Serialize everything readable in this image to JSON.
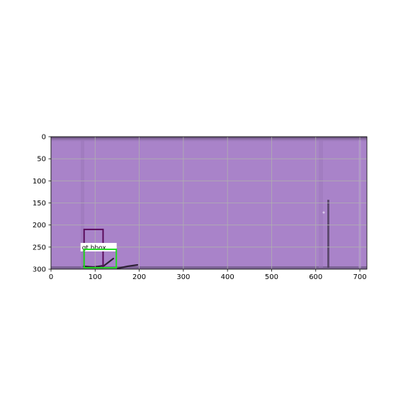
{
  "figure": {
    "x_ticks": [
      "0",
      "100",
      "200",
      "300",
      "400",
      "500",
      "600",
      "700"
    ],
    "y_ticks": [
      "0",
      "50",
      "100",
      "150",
      "200",
      "250",
      "300"
    ],
    "x_range": [
      0,
      716
    ],
    "y_range": [
      0,
      300
    ],
    "grid": true
  },
  "image": {
    "base_color": "#a983c9",
    "edge_color": "#5c4a6b"
  },
  "boxes": [
    {
      "label": "",
      "color": "#5a0b5a",
      "x": [
        75,
        118
      ],
      "y": [
        210,
        297
      ]
    },
    {
      "label": "gt bbox",
      "color": "#22dd22",
      "x": [
        75,
        148
      ],
      "y": [
        255,
        297
      ]
    }
  ]
}
